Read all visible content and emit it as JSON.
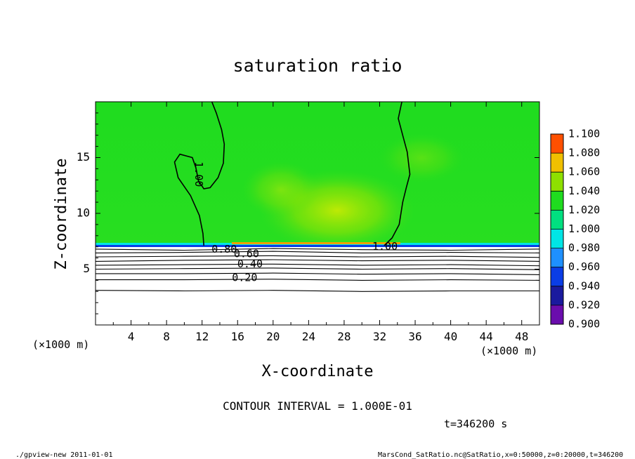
{
  "chart_data": {
    "type": "heatmap",
    "title": "saturation ratio",
    "xlabel": "X-coordinate",
    "ylabel": "Z-coordinate",
    "x_unit_label_left": "(×1000 m)",
    "x_unit_label_right": "(×1000 m)",
    "xlim": [
      0,
      50
    ],
    "ylim": [
      0,
      20
    ],
    "xticks": [
      4,
      8,
      12,
      16,
      20,
      24,
      28,
      32,
      36,
      40,
      44,
      48
    ],
    "yticks": [
      5,
      10,
      15
    ],
    "colorbar": {
      "levels": [
        0.9,
        0.92,
        0.94,
        0.96,
        0.98,
        1.0,
        1.02,
        1.04,
        1.06,
        1.08,
        1.1
      ],
      "labels": [
        "0.900",
        "0.920",
        "0.940",
        "0.960",
        "0.980",
        "1.000",
        "1.020",
        "1.040",
        "1.060",
        "1.080",
        "1.100"
      ],
      "colors": [
        "#6a0dad",
        "#1a1a9e",
        "#0a3de6",
        "#1e90ff",
        "#00e5e5",
        "#00e080",
        "#1fdc1f",
        "#8ee000",
        "#f0c000",
        "#ff5000",
        "#ff9090"
      ]
    },
    "background_value": 1.0,
    "cloud_base_z": 7.1,
    "contour_labels": [
      {
        "text": "1.00",
        "x": 11.6,
        "z": 13.5,
        "rotate": 90
      },
      {
        "text": "1.00",
        "x": 32.6,
        "z": 7.0
      },
      {
        "text": "0.80",
        "x": 14.5,
        "z": 6.75
      },
      {
        "text": "0.60",
        "x": 17.0,
        "z": 6.35
      },
      {
        "text": "0.40",
        "x": 17.4,
        "z": 5.45
      },
      {
        "text": "0.20",
        "x": 16.8,
        "z": 4.2
      }
    ],
    "contour_lines": [
      {
        "level": 1.0,
        "points": [
          [
            13.1,
            20
          ],
          [
            13.6,
            19
          ],
          [
            14.2,
            17.5
          ],
          [
            14.5,
            16.2
          ],
          [
            14.4,
            14.5
          ],
          [
            13.8,
            13.2
          ],
          [
            12.9,
            12.3
          ],
          [
            12.2,
            12.2
          ],
          [
            11.6,
            12.9
          ],
          [
            11.3,
            14.1
          ],
          [
            10.9,
            15
          ],
          [
            9.5,
            15.3
          ],
          [
            8.9,
            14.6
          ],
          [
            9.3,
            13.2
          ],
          [
            10.7,
            11.6
          ],
          [
            11.7,
            9.8
          ],
          [
            12.1,
            8.2
          ],
          [
            12.2,
            7.1
          ]
        ]
      },
      {
        "level": 1.0,
        "points": [
          [
            34.5,
            20
          ],
          [
            34.1,
            18.5
          ],
          [
            34.6,
            17
          ],
          [
            35.1,
            15.5
          ],
          [
            35.4,
            13.5
          ],
          [
            35.0,
            12.3
          ],
          [
            34.6,
            11
          ],
          [
            34.2,
            9
          ],
          [
            33.4,
            7.8
          ],
          [
            32.5,
            7.1
          ]
        ]
      },
      {
        "level": 0.9,
        "points": [
          [
            0,
            6.8
          ],
          [
            10,
            6.7
          ],
          [
            20,
            6.85
          ],
          [
            30,
            6.75
          ],
          [
            40,
            6.7
          ],
          [
            50,
            6.8
          ]
        ]
      },
      {
        "level": 0.8,
        "points": [
          [
            0,
            6.45
          ],
          [
            10,
            6.5
          ],
          [
            20,
            6.6
          ],
          [
            30,
            6.45
          ],
          [
            40,
            6.5
          ],
          [
            50,
            6.45
          ]
        ]
      },
      {
        "level": 0.7,
        "points": [
          [
            0,
            6.1
          ],
          [
            10,
            6.15
          ],
          [
            20,
            6.2
          ],
          [
            30,
            6.1
          ],
          [
            40,
            6.15
          ],
          [
            50,
            6.05
          ]
        ]
      },
      {
        "level": 0.6,
        "points": [
          [
            0,
            5.7
          ],
          [
            10,
            5.8
          ],
          [
            20,
            5.85
          ],
          [
            30,
            5.75
          ],
          [
            40,
            5.8
          ],
          [
            50,
            5.7
          ]
        ]
      },
      {
        "level": 0.5,
        "points": [
          [
            0,
            5.35
          ],
          [
            10,
            5.4
          ],
          [
            20,
            5.45
          ],
          [
            30,
            5.35
          ],
          [
            40,
            5.4
          ],
          [
            50,
            5.3
          ]
        ]
      },
      {
        "level": 0.4,
        "points": [
          [
            0,
            5.0
          ],
          [
            10,
            5.05
          ],
          [
            20,
            5.1
          ],
          [
            30,
            5.0
          ],
          [
            40,
            5.05
          ],
          [
            50,
            4.95
          ]
        ]
      },
      {
        "level": 0.3,
        "points": [
          [
            0,
            4.6
          ],
          [
            10,
            4.6
          ],
          [
            20,
            4.65
          ],
          [
            30,
            4.55
          ],
          [
            40,
            4.6
          ],
          [
            50,
            4.5
          ]
        ]
      },
      {
        "level": 0.2,
        "points": [
          [
            0,
            4.05
          ],
          [
            10,
            4.05
          ],
          [
            20,
            4.1
          ],
          [
            30,
            4.0
          ],
          [
            40,
            4.05
          ],
          [
            50,
            4.0
          ]
        ]
      },
      {
        "level": 0.1,
        "points": [
          [
            0,
            3.1
          ],
          [
            10,
            3.05
          ],
          [
            20,
            3.1
          ],
          [
            30,
            3.0
          ],
          [
            40,
            3.05
          ],
          [
            50,
            3.05
          ]
        ]
      }
    ]
  },
  "annotations": {
    "contour_interval": "CONTOUR INTERVAL = 1.000E-01",
    "time": "t=346200 s",
    "footer_left": "./gpview-new  2011-01-01",
    "footer_right": "MarsCond_SatRatio.nc@SatRatio,x=0:50000,z=0:20000,t=346200"
  }
}
